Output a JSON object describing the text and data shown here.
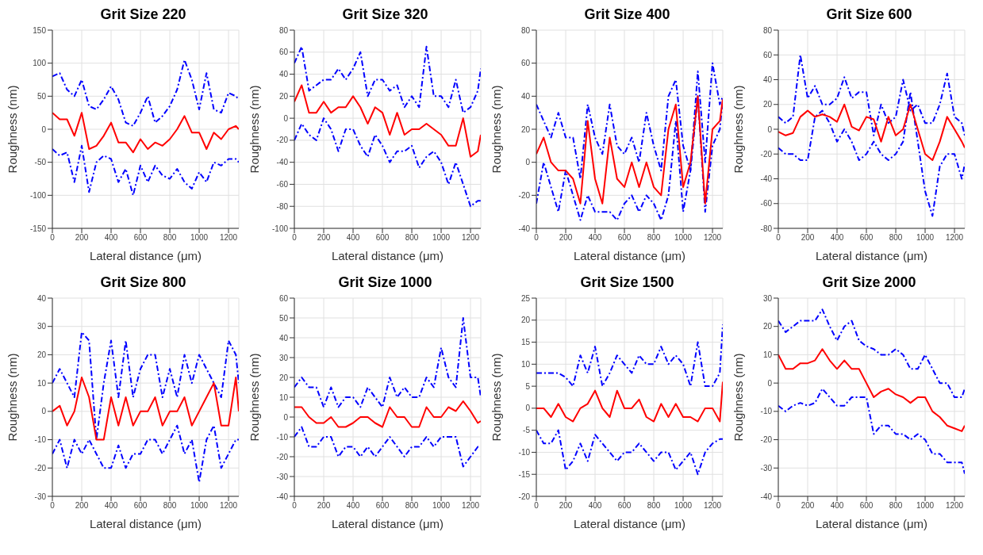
{
  "chart_data": [
    {
      "type": "line",
      "title": "Grit Size 220",
      "xlabel": "Lateral distance (μm)",
      "ylabel": "Roughness (nm)",
      "xlim": [
        0,
        1270
      ],
      "xticks": [
        0,
        200,
        400,
        600,
        800,
        1000,
        1200
      ],
      "ylim": [
        -150,
        150
      ],
      "yticks": [
        -150,
        -100,
        -50,
        0,
        50,
        100,
        150
      ],
      "grid": true,
      "marker": "none",
      "x": [
        0,
        50,
        100,
        150,
        200,
        250,
        300,
        350,
        400,
        450,
        500,
        550,
        600,
        650,
        700,
        750,
        800,
        850,
        900,
        950,
        1000,
        1050,
        1100,
        1150,
        1200,
        1250,
        1270
      ],
      "series": [
        {
          "color": "#0000ff",
          "line_style": "dashed",
          "values": [
            80,
            85,
            60,
            50,
            75,
            35,
            30,
            45,
            65,
            45,
            10,
            5,
            25,
            50,
            10,
            20,
            35,
            60,
            105,
            75,
            30,
            85,
            30,
            25,
            55,
            50,
            45
          ]
        },
        {
          "color": "#0000ff",
          "line_style": "dashed",
          "values": [
            -30,
            -40,
            -35,
            -80,
            -25,
            -95,
            -50,
            -40,
            -45,
            -80,
            -60,
            -100,
            -55,
            -80,
            -55,
            -70,
            -75,
            -60,
            -80,
            -90,
            -65,
            -80,
            -50,
            -55,
            -45,
            -45,
            -50
          ]
        },
        {
          "color": "#ff0000",
          "line_style": "solid",
          "values": [
            25,
            15,
            15,
            -10,
            25,
            -30,
            -25,
            -10,
            10,
            -20,
            -20,
            -35,
            -15,
            -30,
            -20,
            -25,
            -15,
            0,
            20,
            -5,
            -5,
            -30,
            -5,
            -15,
            0,
            5,
            0
          ]
        }
      ]
    },
    {
      "type": "line",
      "title": "Grit Size 320",
      "xlabel": "Lateral distance (μm)",
      "ylabel": "Roughness (nm)",
      "xlim": [
        0,
        1270
      ],
      "xticks": [
        0,
        200,
        400,
        600,
        800,
        1000,
        1200
      ],
      "ylim": [
        -100,
        80
      ],
      "yticks": [
        -100,
        -80,
        -60,
        -40,
        -20,
        0,
        20,
        40,
        60,
        80
      ],
      "grid": true,
      "marker": "none",
      "x": [
        0,
        50,
        100,
        150,
        200,
        250,
        300,
        350,
        400,
        450,
        500,
        550,
        600,
        650,
        700,
        750,
        800,
        850,
        900,
        950,
        1000,
        1050,
        1100,
        1150,
        1200,
        1250,
        1270
      ],
      "series": [
        {
          "color": "#0000ff",
          "line_style": "dashed",
          "values": [
            50,
            65,
            25,
            30,
            35,
            35,
            45,
            35,
            45,
            60,
            20,
            35,
            35,
            25,
            30,
            10,
            20,
            10,
            65,
            20,
            20,
            10,
            35,
            5,
            10,
            25,
            45
          ]
        },
        {
          "color": "#0000ff",
          "line_style": "dashed",
          "values": [
            -20,
            -5,
            -15,
            -20,
            0,
            -10,
            -30,
            -10,
            -10,
            -25,
            -35,
            -15,
            -25,
            -40,
            -30,
            -30,
            -25,
            -45,
            -35,
            -30,
            -40,
            -60,
            -40,
            -60,
            -80,
            -75,
            -75
          ]
        },
        {
          "color": "#ff0000",
          "line_style": "solid",
          "values": [
            15,
            30,
            5,
            5,
            15,
            5,
            10,
            10,
            20,
            10,
            -5,
            10,
            5,
            -15,
            5,
            -15,
            -10,
            -10,
            -5,
            -10,
            -15,
            -25,
            -25,
            0,
            -35,
            -30,
            -15
          ]
        }
      ]
    },
    {
      "type": "line",
      "title": "Grit Size 400",
      "xlabel": "Lateral distance (μm)",
      "ylabel": "Roughness (nm)",
      "xlim": [
        0,
        1270
      ],
      "xticks": [
        0,
        200,
        400,
        600,
        800,
        1000,
        1200
      ],
      "ylim": [
        -40,
        80
      ],
      "yticks": [
        -40,
        -20,
        0,
        20,
        40,
        60,
        80
      ],
      "grid": true,
      "marker": "none",
      "x": [
        0,
        50,
        100,
        150,
        200,
        250,
        300,
        350,
        400,
        450,
        500,
        550,
        600,
        650,
        700,
        750,
        800,
        850,
        900,
        950,
        1000,
        1050,
        1100,
        1150,
        1200,
        1250,
        1270
      ],
      "series": [
        {
          "color": "#0000ff",
          "line_style": "dashed",
          "values": [
            35,
            25,
            15,
            30,
            15,
            15,
            -10,
            35,
            15,
            5,
            35,
            10,
            5,
            15,
            0,
            30,
            10,
            -5,
            40,
            50,
            10,
            -5,
            55,
            0,
            60,
            35,
            40
          ]
        },
        {
          "color": "#0000ff",
          "line_style": "dashed",
          "values": [
            -25,
            0,
            -15,
            -30,
            -5,
            -20,
            -35,
            -20,
            -30,
            -30,
            -30,
            -35,
            -25,
            -20,
            -30,
            -20,
            -25,
            -35,
            -20,
            25,
            -30,
            -5,
            40,
            -30,
            10,
            20,
            38
          ]
        },
        {
          "color": "#ff0000",
          "line_style": "solid",
          "values": [
            5,
            15,
            0,
            -5,
            -5,
            -10,
            -25,
            25,
            -10,
            -25,
            15,
            -10,
            -15,
            0,
            -15,
            0,
            -15,
            -20,
            20,
            35,
            -15,
            0,
            40,
            -25,
            20,
            25,
            38
          ]
        }
      ]
    },
    {
      "type": "line",
      "title": "Grit Size 600",
      "xlabel": "Lateral distance (μm)",
      "ylabel": "Roughness (nm)",
      "xlim": [
        0,
        1270
      ],
      "xticks": [
        0,
        200,
        400,
        600,
        800,
        1000,
        1200
      ],
      "ylim": [
        -80,
        80
      ],
      "yticks": [
        -80,
        -60,
        -40,
        -20,
        0,
        20,
        40,
        60,
        80
      ],
      "grid": true,
      "marker": "none",
      "x": [
        0,
        50,
        100,
        150,
        200,
        250,
        300,
        350,
        400,
        450,
        500,
        550,
        600,
        650,
        700,
        750,
        800,
        850,
        900,
        950,
        1000,
        1050,
        1100,
        1150,
        1200,
        1250,
        1270
      ],
      "series": [
        {
          "color": "#0000ff",
          "line_style": "dashed",
          "values": [
            10,
            5,
            10,
            60,
            25,
            35,
            20,
            20,
            25,
            42,
            25,
            30,
            30,
            -5,
            20,
            5,
            10,
            40,
            15,
            20,
            5,
            5,
            20,
            45,
            10,
            5,
            -5
          ]
        },
        {
          "color": "#0000ff",
          "line_style": "dashed",
          "values": [
            -15,
            -20,
            -20,
            -25,
            -25,
            10,
            15,
            5,
            -10,
            0,
            -10,
            -25,
            -20,
            -10,
            -20,
            -25,
            -20,
            -10,
            30,
            -10,
            -50,
            -70,
            -30,
            -20,
            -20,
            -40,
            -28
          ]
        },
        {
          "color": "#ff0000",
          "line_style": "solid",
          "values": [
            -2,
            -5,
            -3,
            10,
            15,
            10,
            12,
            10,
            6,
            20,
            2,
            -1,
            10,
            8,
            -10,
            10,
            -5,
            0,
            20,
            0,
            -20,
            -25,
            -10,
            10,
            0,
            -10,
            -15
          ]
        }
      ]
    },
    {
      "type": "line",
      "title": "Grit Size 800",
      "xlabel": "Lateral distance (μm)",
      "ylabel": "Roughness (nm)",
      "xlim": [
        0,
        1270
      ],
      "xticks": [
        0,
        200,
        400,
        600,
        800,
        1000,
        1200
      ],
      "ylim": [
        -30,
        40
      ],
      "yticks": [
        -30,
        -20,
        -10,
        0,
        10,
        20,
        30,
        40
      ],
      "grid": true,
      "marker": "none",
      "x": [
        0,
        50,
        100,
        150,
        200,
        250,
        300,
        350,
        400,
        450,
        500,
        550,
        600,
        650,
        700,
        750,
        800,
        850,
        900,
        950,
        1000,
        1050,
        1100,
        1150,
        1200,
        1250,
        1270
      ],
      "series": [
        {
          "color": "#0000ff",
          "line_style": "dashed",
          "values": [
            10,
            15,
            10,
            5,
            28,
            25,
            -10,
            10,
            25,
            5,
            25,
            5,
            15,
            20,
            20,
            5,
            15,
            5,
            20,
            10,
            20,
            15,
            10,
            5,
            25,
            20,
            10
          ]
        },
        {
          "color": "#0000ff",
          "line_style": "dashed",
          "values": [
            -15,
            -10,
            -20,
            -10,
            -15,
            -10,
            -15,
            -20,
            -20,
            -12,
            -20,
            -15,
            -15,
            -10,
            -10,
            -15,
            -10,
            -5,
            -15,
            -10,
            -25,
            -10,
            -5,
            -20,
            -15,
            -10,
            -10
          ]
        },
        {
          "color": "#ff0000",
          "line_style": "solid",
          "values": [
            0,
            2,
            -5,
            0,
            12,
            5,
            -10,
            -10,
            5,
            -5,
            5,
            -5,
            0,
            0,
            5,
            -5,
            0,
            0,
            5,
            -5,
            0,
            5,
            10,
            -5,
            -5,
            12,
            0
          ]
        }
      ]
    },
    {
      "type": "line",
      "title": "Grit Size 1000",
      "xlabel": "Lateral distance (μm)",
      "ylabel": "Roughness (nm)",
      "xlim": [
        0,
        1270
      ],
      "xticks": [
        0,
        200,
        400,
        600,
        800,
        1000,
        1200
      ],
      "ylim": [
        -40,
        60
      ],
      "yticks": [
        -40,
        -30,
        -20,
        -10,
        0,
        10,
        20,
        30,
        40,
        50,
        60
      ],
      "grid": true,
      "marker": "none",
      "x": [
        0,
        50,
        100,
        150,
        200,
        250,
        300,
        350,
        400,
        450,
        500,
        550,
        600,
        650,
        700,
        750,
        800,
        850,
        900,
        950,
        1000,
        1050,
        1100,
        1150,
        1200,
        1250,
        1270
      ],
      "series": [
        {
          "color": "#0000ff",
          "line_style": "dashed",
          "values": [
            15,
            20,
            15,
            15,
            5,
            15,
            5,
            10,
            10,
            5,
            15,
            10,
            5,
            20,
            10,
            15,
            10,
            10,
            20,
            15,
            35,
            20,
            15,
            50,
            20,
            20,
            10
          ]
        },
        {
          "color": "#0000ff",
          "line_style": "dashed",
          "values": [
            -10,
            -5,
            -15,
            -15,
            -10,
            -10,
            -20,
            -15,
            -15,
            -20,
            -15,
            -20,
            -15,
            -10,
            -15,
            -20,
            -15,
            -15,
            -10,
            -15,
            -10,
            -10,
            -10,
            -25,
            -20,
            -15,
            -15
          ]
        },
        {
          "color": "#ff0000",
          "line_style": "solid",
          "values": [
            5,
            5,
            0,
            -3,
            -3,
            0,
            -5,
            -5,
            -3,
            0,
            0,
            -3,
            -5,
            5,
            0,
            0,
            -5,
            -5,
            5,
            0,
            0,
            5,
            3,
            8,
            3,
            -3,
            -2
          ]
        }
      ]
    },
    {
      "type": "line",
      "title": "Grit Size 1500",
      "xlabel": "Lateral distance (μm)",
      "ylabel": "Roughness (nm)",
      "xlim": [
        0,
        1270
      ],
      "xticks": [
        0,
        200,
        400,
        600,
        800,
        1000,
        1200
      ],
      "ylim": [
        -20,
        25
      ],
      "yticks": [
        -20,
        -15,
        -10,
        -5,
        0,
        5,
        10,
        15,
        20,
        25
      ],
      "grid": true,
      "marker": "none",
      "x": [
        0,
        50,
        100,
        150,
        200,
        250,
        300,
        350,
        400,
        450,
        500,
        550,
        600,
        650,
        700,
        750,
        800,
        850,
        900,
        950,
        1000,
        1050,
        1100,
        1150,
        1200,
        1250,
        1270
      ],
      "series": [
        {
          "color": "#0000ff",
          "line_style": "dashed",
          "values": [
            8,
            8,
            8,
            8,
            7,
            5,
            12,
            8,
            14,
            5,
            8,
            12,
            10,
            8,
            12,
            10,
            10,
            14,
            10,
            12,
            10,
            5,
            15,
            5,
            5,
            8,
            19
          ]
        },
        {
          "color": "#0000ff",
          "line_style": "dashed",
          "values": [
            -5,
            -8,
            -8,
            -5,
            -14,
            -12,
            -8,
            -12,
            -6,
            -8,
            -10,
            -12,
            -10,
            -10,
            -8,
            -10,
            -12,
            -10,
            -10,
            -14,
            -12,
            -10,
            -15,
            -10,
            -8,
            -7,
            -7
          ]
        },
        {
          "color": "#ff0000",
          "line_style": "solid",
          "values": [
            0,
            0,
            -2,
            1,
            -2,
            -3,
            0,
            1,
            4,
            0,
            -2,
            4,
            0,
            0,
            2,
            -2,
            -3,
            1,
            -2,
            1,
            -2,
            -2,
            -3,
            0,
            0,
            -3,
            6
          ]
        }
      ]
    },
    {
      "type": "line",
      "title": "Grit Size 2000",
      "xlabel": "Lateral distance (μm)",
      "ylabel": "Roughness (nm)",
      "xlim": [
        0,
        1270
      ],
      "xticks": [
        0,
        200,
        400,
        600,
        800,
        1000,
        1200
      ],
      "ylim": [
        -40,
        30
      ],
      "yticks": [
        -40,
        -30,
        -20,
        -10,
        0,
        10,
        20,
        30
      ],
      "grid": true,
      "marker": "none",
      "x": [
        0,
        50,
        100,
        150,
        200,
        250,
        300,
        350,
        400,
        450,
        500,
        550,
        600,
        650,
        700,
        750,
        800,
        850,
        900,
        950,
        1000,
        1050,
        1100,
        1150,
        1200,
        1250,
        1270
      ],
      "series": [
        {
          "color": "#0000ff",
          "line_style": "dashed",
          "values": [
            22,
            18,
            20,
            22,
            22,
            22,
            26,
            20,
            15,
            20,
            22,
            15,
            13,
            12,
            10,
            10,
            12,
            10,
            5,
            5,
            10,
            5,
            0,
            0,
            -5,
            -5,
            -2
          ]
        },
        {
          "color": "#0000ff",
          "line_style": "dashed",
          "values": [
            -8,
            -10,
            -8,
            -7,
            -8,
            -7,
            -2,
            -5,
            -8,
            -8,
            -5,
            -5,
            -5,
            -18,
            -15,
            -15,
            -18,
            -18,
            -20,
            -18,
            -20,
            -25,
            -25,
            -28,
            -28,
            -28,
            -32
          ]
        },
        {
          "color": "#ff0000",
          "line_style": "solid",
          "values": [
            10,
            5,
            5,
            7,
            7,
            8,
            12,
            8,
            5,
            8,
            5,
            5,
            0,
            -5,
            -3,
            -2,
            -4,
            -5,
            -7,
            -5,
            -5,
            -10,
            -12,
            -15,
            -16,
            -17,
            -15
          ]
        }
      ]
    }
  ]
}
